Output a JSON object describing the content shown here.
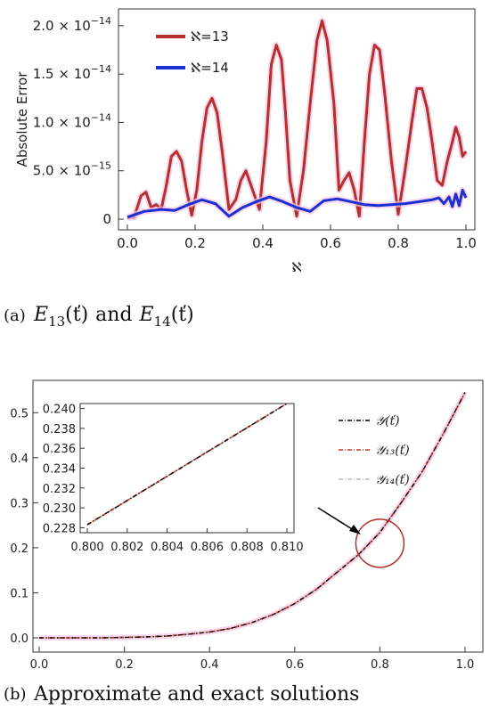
{
  "chart_data": [
    {
      "type": "line",
      "ylabel": "Absolute Error",
      "xlabel": "ℵ",
      "xlim": [
        0,
        1
      ],
      "ylim": [
        0,
        2.1e-14
      ],
      "x_ticks": [
        "0.0",
        "0.2",
        "0.4",
        "0.6",
        "0.8",
        "1.0"
      ],
      "y_ticks": [
        {
          "value": 0,
          "mant": "0",
          "exp": ""
        },
        {
          "value": 5e-15,
          "mant": "5.0 × 10",
          "exp": "−15"
        },
        {
          "value": 1e-14,
          "mant": "1.0 × 10",
          "exp": "−14"
        },
        {
          "value": 1.5e-14,
          "mant": "1.5 × 10",
          "exp": "−14"
        },
        {
          "value": 2e-14,
          "mant": "2.0 × 10",
          "exp": "−14"
        }
      ],
      "legend_position": "top-left",
      "series": [
        {
          "name": "ℵ=13",
          "color": "#b5302a",
          "x": [
            0.0,
            0.02,
            0.04,
            0.055,
            0.07,
            0.085,
            0.1,
            0.115,
            0.13,
            0.145,
            0.16,
            0.175,
            0.19,
            0.205,
            0.22,
            0.235,
            0.25,
            0.265,
            0.28,
            0.3,
            0.32,
            0.335,
            0.35,
            0.37,
            0.39,
            0.41,
            0.425,
            0.44,
            0.455,
            0.465,
            0.48,
            0.5,
            0.52,
            0.54,
            0.56,
            0.575,
            0.59,
            0.61,
            0.625,
            0.64,
            0.655,
            0.67,
            0.685,
            0.7,
            0.715,
            0.73,
            0.745,
            0.76,
            0.78,
            0.8,
            0.82,
            0.84,
            0.855,
            0.87,
            0.885,
            0.9,
            0.915,
            0.93,
            0.945,
            0.96,
            0.97,
            0.98,
            0.99,
            1.0
          ],
          "values": [
            1.5e-16,
            2e-16,
            2.4e-15,
            2.8e-15,
            1.2e-15,
            1.5e-15,
            1e-15,
            3.5e-15,
            6.5e-15,
            7e-15,
            6e-15,
            3e-15,
            4e-16,
            3e-15,
            8e-15,
            1.15e-14,
            1.25e-14,
            1.1e-14,
            7e-15,
            1e-15,
            2e-15,
            4e-15,
            5e-15,
            3e-15,
            1e-15,
            8e-15,
            1.6e-14,
            1.8e-14,
            1.65e-14,
            1.2e-14,
            4e-15,
            3e-16,
            5e-15,
            1.2e-14,
            1.85e-14,
            2.05e-14,
            1.85e-14,
            1.2e-14,
            3e-15,
            4e-15,
            4.8e-15,
            3e-15,
            3e-16,
            8e-15,
            1.5e-14,
            1.8e-14,
            1.75e-14,
            1.3e-14,
            6e-15,
            5e-16,
            5e-15,
            1e-14,
            1.35e-14,
            1.35e-14,
            1.15e-14,
            8e-15,
            4e-15,
            3.5e-15,
            6e-15,
            8e-15,
            9.5e-15,
            8.5e-15,
            6.5e-15,
            7e-15
          ]
        },
        {
          "name": "ℵ=14",
          "color": "#1c2fd0",
          "x": [
            0.0,
            0.05,
            0.1,
            0.14,
            0.18,
            0.22,
            0.26,
            0.3,
            0.34,
            0.38,
            0.42,
            0.46,
            0.5,
            0.54,
            0.58,
            0.62,
            0.66,
            0.7,
            0.74,
            0.78,
            0.82,
            0.86,
            0.88,
            0.9,
            0.92,
            0.935,
            0.95,
            0.96,
            0.97,
            0.98,
            0.99,
            1.0
          ],
          "values": [
            2e-16,
            8e-16,
            1e-15,
            9e-16,
            1.5e-15,
            2e-15,
            1.6e-15,
            3e-16,
            1.2e-15,
            1.8e-15,
            2.3e-15,
            1.8e-15,
            1.2e-15,
            8e-16,
            1.9e-15,
            2.1e-15,
            1.8e-15,
            1.5e-15,
            1.4e-15,
            1.5e-15,
            1.6e-15,
            1.8e-15,
            1.9e-15,
            2e-15,
            2.2e-15,
            1.6e-15,
            2.3e-15,
            1.3e-15,
            2.6e-15,
            1.4e-15,
            3e-15,
            2.2e-15
          ]
        }
      ],
      "caption_tag": "(a)",
      "caption_math_a": "E",
      "caption_sub_a": "13",
      "caption_arg": "(ť)",
      "caption_and": "and",
      "caption_math_b": "E",
      "caption_sub_b": "14"
    },
    {
      "type": "line",
      "xlim": [
        0,
        1
      ],
      "ylim": [
        0,
        0.55
      ],
      "x_ticks": [
        "0.0",
        "0.2",
        "0.4",
        "0.6",
        "0.8",
        "1.0"
      ],
      "y_ticks": [
        "0.0",
        "0.1",
        "0.2",
        "0.3",
        "0.4",
        "0.5"
      ],
      "legend_position": "top-right",
      "legend": [
        {
          "label": "𝒴(ť)",
          "color": "#000000",
          "dash": "dashdot"
        },
        {
          "label": "𝒴₁₃(ť)",
          "color": "#c43a2a",
          "dash": "dashdot"
        },
        {
          "label": "𝒴₁₄(ť)",
          "color": "#bbbbbb",
          "dash": "dashdot"
        }
      ],
      "series_formula_note": "",
      "x": [
        0.0,
        0.05,
        0.1,
        0.15,
        0.2,
        0.25,
        0.3,
        0.35,
        0.4,
        0.45,
        0.5,
        0.55,
        0.6,
        0.65,
        0.7,
        0.75,
        0.8,
        0.85,
        0.9,
        0.95,
        1.0
      ],
      "values": [
        0.0,
        0.0,
        0.0,
        0.0,
        0.001,
        0.002,
        0.004,
        0.008,
        0.013,
        0.021,
        0.034,
        0.052,
        0.076,
        0.107,
        0.146,
        0.185,
        0.234,
        0.3,
        0.37,
        0.455,
        0.545
      ],
      "inset": {
        "xlim": [
          0.8,
          0.81
        ],
        "ylim": [
          0.2275,
          0.2405
        ],
        "x_ticks": [
          "0.800",
          "0.802",
          "0.804",
          "0.806",
          "0.808",
          "0.810"
        ],
        "y_ticks": [
          "0.228",
          "0.230",
          "0.232",
          "0.234",
          "0.236",
          "0.238",
          "0.240"
        ],
        "x": [
          0.8,
          0.81
        ],
        "values": [
          0.2283,
          0.2405
        ]
      },
      "highlight_circle_at": {
        "x": 0.8,
        "y": 0.21
      },
      "caption_tag": "(b)",
      "caption_text": "Approximate and exact solutions"
    }
  ]
}
